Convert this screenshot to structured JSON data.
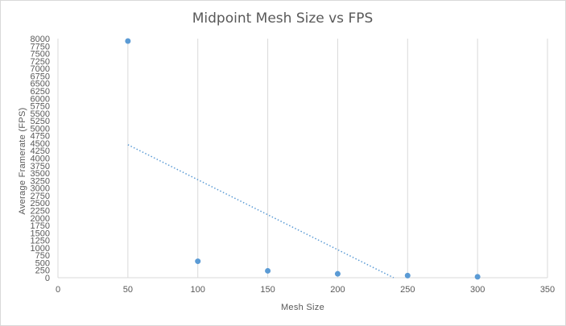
{
  "chart_data": {
    "type": "scatter",
    "title": "Midpoint Mesh Size vs FPS",
    "xlabel": "Mesh Size",
    "ylabel": "Average Framerate  (FPS)",
    "xlim": [
      0,
      350
    ],
    "ylim": [
      0,
      8000
    ],
    "x_ticks": [
      0,
      50,
      100,
      150,
      200,
      250,
      300,
      350
    ],
    "y_tick_step": 250,
    "grid": "vertical",
    "legend": "none",
    "series": [
      {
        "x": [
          50,
          100,
          150,
          200,
          250,
          300
        ],
        "y": [
          7920,
          550,
          230,
          130,
          70,
          30
        ]
      }
    ],
    "trendline": {
      "type": "linear",
      "style": "dotted",
      "x_start": 50,
      "y_start": 4450,
      "x_end": 240,
      "y_end": 0
    },
    "colors": {
      "marker": "#5b9bd5",
      "trendline": "#5b9bd5",
      "grid": "#d9d9d9",
      "text": "#595959"
    }
  }
}
